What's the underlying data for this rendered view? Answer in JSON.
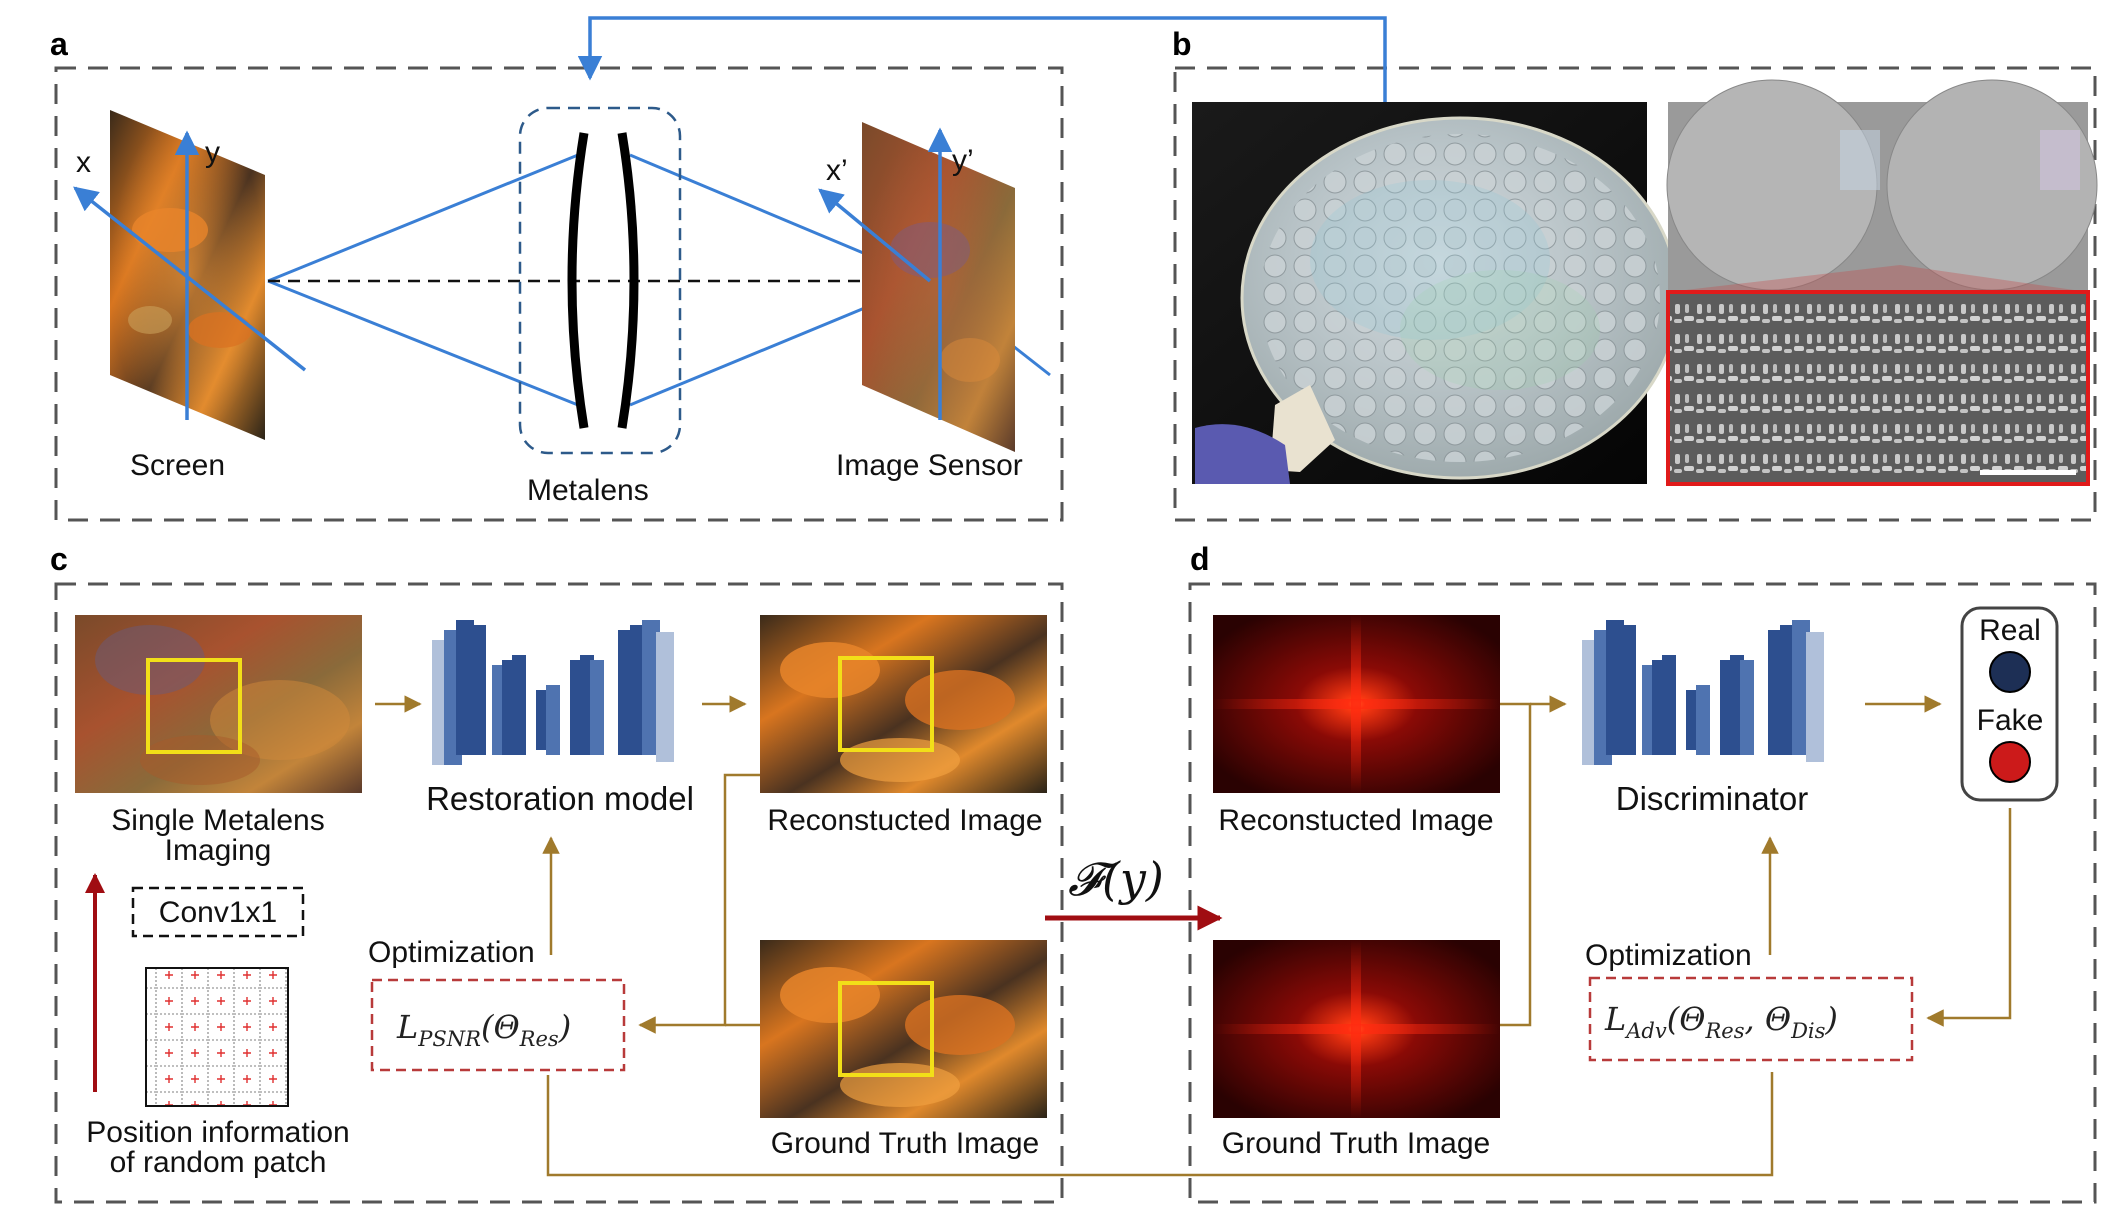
{
  "panels": {
    "a": "a",
    "b": "b",
    "c": "c",
    "d": "d"
  },
  "panel_a": {
    "screen_label": "Screen",
    "metalens_label": "Metalens",
    "sensor_label": "Image Sensor",
    "axis_x": "x",
    "axis_y": "y",
    "axis_x_prime": "x’",
    "axis_y_prime": "y’"
  },
  "panel_c": {
    "input_caption_line1": "Single Metalens",
    "input_caption_line2": "Imaging",
    "model_label": "Restoration model",
    "recon_label": "Reconstucted Image",
    "gt_label": "Ground Truth Image",
    "conv_label": "Conv1x1",
    "position_line1": "Position information",
    "position_line2": "of random patch",
    "optimization_label": "Optimization",
    "loss_main": "L",
    "loss_sub": "PSNR",
    "loss_open": "(Θ",
    "loss_arg_sub": "Res",
    "loss_close": ")"
  },
  "transform_label": "𝓕(y)",
  "panel_d": {
    "recon_label": "Reconstucted Image",
    "gt_label": "Ground Truth Image",
    "disc_label": "Discriminator",
    "real_label": "Real",
    "fake_label": "Fake",
    "optimization_label": "Optimization",
    "loss_main": "L",
    "loss_sub": "Adv",
    "loss_open": "(Θ",
    "loss_arg1_sub": "Res",
    "loss_mid": ", Θ",
    "loss_arg2_sub": "Dis",
    "loss_close": ")"
  },
  "colors": {
    "ray_blue": "#3a7fd5",
    "flow_brown": "#a07a2c",
    "dash_red": "#b83a3a",
    "arrow_dark_red": "#a00d12",
    "real_circle": "#1d2f55",
    "fake_circle": "#cc1a1a",
    "network_blue": "#2d4f8f",
    "highlight_yellow": "#f2df18",
    "sem_box_red": "#e01a1a"
  }
}
